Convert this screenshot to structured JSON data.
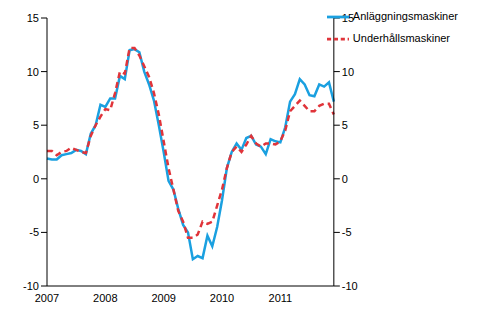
{
  "chart_data": {
    "type": "line",
    "categories": [
      "2007",
      null,
      null,
      null,
      null,
      null,
      null,
      null,
      null,
      null,
      null,
      null,
      "2008",
      null,
      null,
      null,
      null,
      null,
      null,
      null,
      null,
      null,
      null,
      null,
      "2009",
      null,
      null,
      null,
      null,
      null,
      null,
      null,
      null,
      null,
      null,
      null,
      "2010",
      null,
      null,
      null,
      null,
      null,
      null,
      null,
      null,
      null,
      null,
      null,
      "2011",
      null,
      null,
      null,
      null,
      null,
      null,
      null,
      null,
      null,
      null,
      null
    ],
    "series": [
      {
        "name": "Anläggningsmaskiner",
        "color": "#1aa0e0",
        "line_style": "solid",
        "values": [
          1.9,
          1.8,
          1.8,
          2.2,
          2.3,
          2.4,
          2.7,
          2.6,
          2.3,
          4.2,
          5.0,
          6.9,
          6.7,
          7.5,
          7.5,
          9.6,
          9.3,
          12.0,
          12.1,
          11.8,
          10.0,
          8.8,
          7.3,
          5.0,
          2.5,
          -0.2,
          -1.0,
          -2.8,
          -4.3,
          -5.0,
          -7.5,
          -7.2,
          -7.4,
          -5.3,
          -6.3,
          -4.5,
          -2.0,
          1.0,
          2.5,
          3.3,
          2.7,
          3.8,
          4.0,
          3.2,
          3.0,
          2.3,
          3.7,
          3.5,
          3.4,
          4.8,
          7.2,
          7.9,
          9.3,
          8.8,
          7.8,
          7.7,
          8.8,
          8.6,
          9.0,
          7.2
        ]
      },
      {
        "name": "Underhållsmaskiner",
        "color": "#e0343a",
        "line_style": "dashed",
        "values": [
          2.6,
          2.6,
          2.2,
          2.5,
          2.6,
          2.9,
          2.7,
          2.5,
          2.4,
          4.0,
          5.0,
          5.8,
          6.5,
          6.4,
          8.0,
          10.0,
          9.8,
          12.2,
          12.2,
          11.5,
          10.5,
          9.5,
          8.0,
          6.0,
          3.5,
          1.0,
          -1.0,
          -3.0,
          -4.0,
          -5.5,
          -5.5,
          -5.2,
          -4.0,
          -4.2,
          -4.0,
          -2.5,
          -1.0,
          1.0,
          2.5,
          3.0,
          2.5,
          3.2,
          4.0,
          3.3,
          3.0,
          3.3,
          3.3,
          3.2,
          3.5,
          4.5,
          6.3,
          6.8,
          7.3,
          6.8,
          6.3,
          6.3,
          6.8,
          7.0,
          7.0,
          6.0
        ]
      }
    ],
    "ylim": [
      -10,
      15
    ],
    "yticks": [
      -10,
      -5,
      0,
      5,
      10,
      15
    ],
    "y2lim": [
      -10,
      15
    ],
    "y2ticks": [
      -10,
      -5,
      0,
      5,
      10,
      15
    ],
    "grid": false,
    "legend": "upper right"
  }
}
